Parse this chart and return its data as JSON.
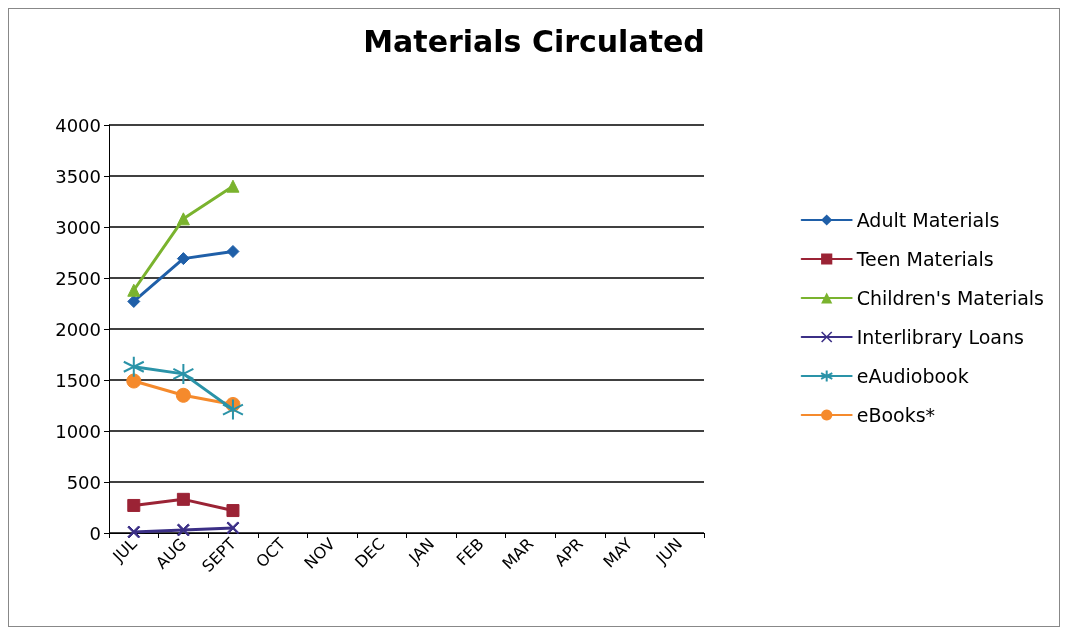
{
  "chart_data": {
    "type": "line",
    "title": "Materials Circulated",
    "categories": [
      "JUL",
      "AUG",
      "SEPT",
      "OCT",
      "NOV",
      "DEC",
      "JAN",
      "FEB",
      "MAR",
      "APR",
      "MAY",
      "JUN"
    ],
    "series": [
      {
        "name": "Adult Materials",
        "color": "#1f5fa8",
        "marker": "diamond",
        "values": [
          2270,
          2690,
          2760,
          null,
          null,
          null,
          null,
          null,
          null,
          null,
          null,
          null
        ]
      },
      {
        "name": "Teen Materials",
        "color": "#9b2335",
        "marker": "square",
        "values": [
          270,
          330,
          220,
          null,
          null,
          null,
          null,
          null,
          null,
          null,
          null,
          null
        ]
      },
      {
        "name": "Children's Materials",
        "color": "#7ab32e",
        "marker": "triangle",
        "values": [
          2380,
          3080,
          3400,
          null,
          null,
          null,
          null,
          null,
          null,
          null,
          null,
          null
        ]
      },
      {
        "name": "Interlibrary Loans",
        "color": "#3b2f86",
        "marker": "cross",
        "values": [
          10,
          30,
          50,
          null,
          null,
          null,
          null,
          null,
          null,
          null,
          null,
          null
        ]
      },
      {
        "name": "eAudiobook",
        "color": "#2a93a8",
        "marker": "star",
        "values": [
          1630,
          1560,
          1210,
          null,
          null,
          null,
          null,
          null,
          null,
          null,
          null,
          null
        ]
      },
      {
        "name": "eBooks*",
        "color": "#f58a2c",
        "marker": "circle",
        "values": [
          1490,
          1350,
          1260,
          null,
          null,
          null,
          null,
          null,
          null,
          null,
          null,
          null
        ]
      }
    ],
    "ylim": [
      0,
      4000
    ],
    "yticks": [
      0,
      500,
      1000,
      1500,
      2000,
      2500,
      3000,
      3500,
      4000
    ],
    "grid": "y",
    "legend": "right",
    "line_style": "solid"
  }
}
